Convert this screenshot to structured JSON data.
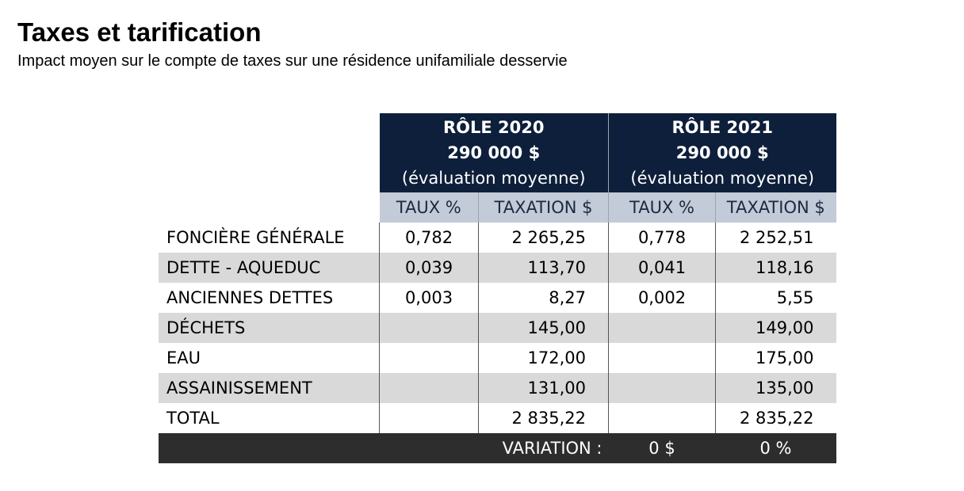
{
  "title": "Taxes et tarification",
  "subtitle": "Impact moyen sur le compte de taxes sur une résidence unifamiliale desservie",
  "table": {
    "roles": [
      {
        "role": "RÔLE 2020",
        "amount": "290 000 $",
        "note": "(évaluation moyenne)"
      },
      {
        "role": "RÔLE 2021",
        "amount": "290 000 $",
        "note": "(évaluation moyenne)"
      }
    ],
    "subheaders": {
      "rate": "TAUX %",
      "tax": "TAXATION $"
    },
    "rows": [
      {
        "label": "FONCIÈRE GÉNÉRALE",
        "rate2020": "0,782",
        "tax2020": "2 265,25",
        "rate2021": "0,778",
        "tax2021": "2 252,51"
      },
      {
        "label": "DETTE - AQUEDUC",
        "rate2020": "0,039",
        "tax2020": "113,70",
        "rate2021": "0,041",
        "tax2021": "118,16"
      },
      {
        "label": "ANCIENNES DETTES",
        "rate2020": "0,003",
        "tax2020": "8,27",
        "rate2021": "0,002",
        "tax2021": "5,55"
      },
      {
        "label": "DÉCHETS",
        "rate2020": "",
        "tax2020": "145,00",
        "rate2021": "",
        "tax2021": "149,00"
      },
      {
        "label": "EAU",
        "rate2020": "",
        "tax2020": "172,00",
        "rate2021": "",
        "tax2021": "175,00"
      },
      {
        "label": "ASSAINISSEMENT",
        "rate2020": "",
        "tax2020": "131,00",
        "rate2021": "",
        "tax2021": "135,00"
      },
      {
        "label": "TOTAL",
        "rate2020": "",
        "tax2020": "2 835,22",
        "rate2021": "",
        "tax2021": "2 835,22"
      }
    ],
    "variation": {
      "label": "VARIATION :",
      "amount": "0 $",
      "percent": "0 %"
    }
  },
  "colors": {
    "header_bg": "#0d1f3a",
    "subheader_bg": "#c3cad8",
    "shaded_row": "#d9d9d9",
    "variation_bg": "#2d2d2d"
  }
}
